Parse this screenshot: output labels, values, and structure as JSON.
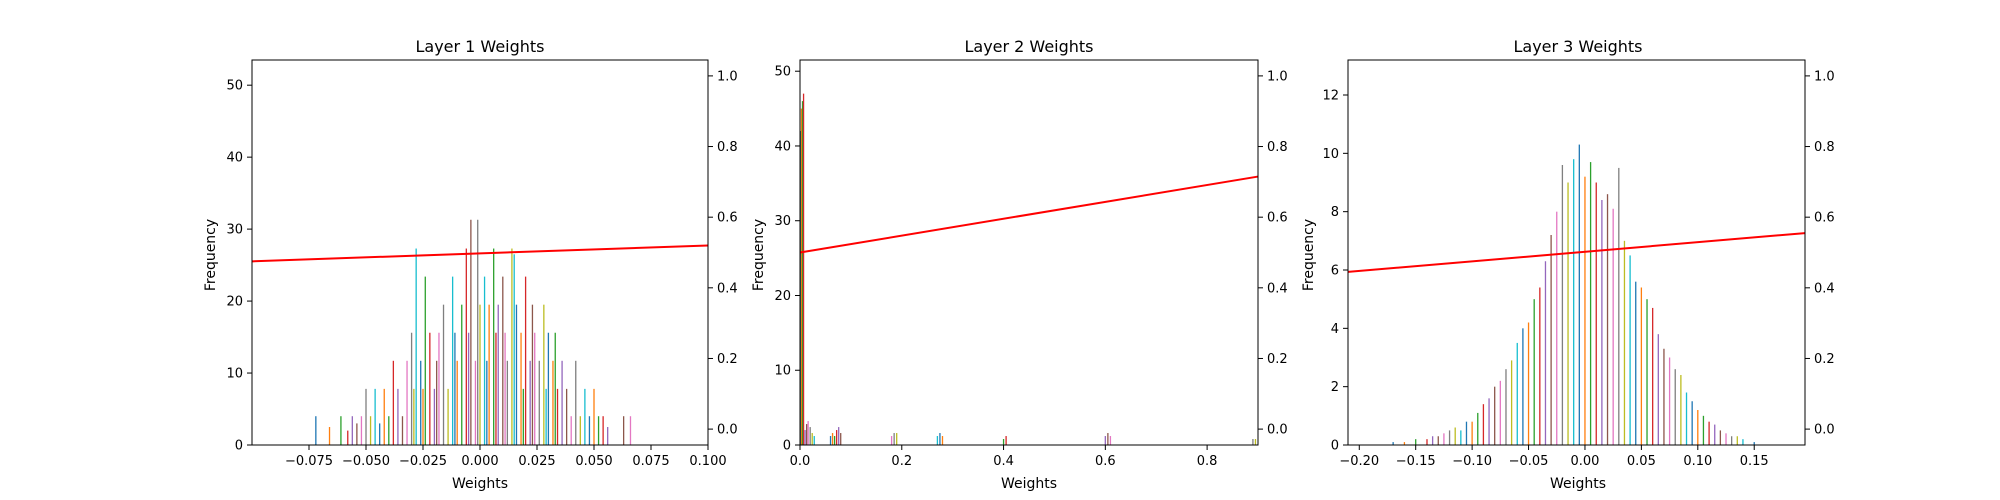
{
  "palette": [
    "#1f77b4",
    "#ff7f0e",
    "#2ca02c",
    "#d62728",
    "#9467bd",
    "#8c564b",
    "#e377c2",
    "#7f7f7f",
    "#bcbd22",
    "#17becf"
  ],
  "line_color": "#ff0000",
  "chart_data": [
    {
      "type": "bar",
      "title": "Layer 1 Weights",
      "xlabel": "Weights",
      "ylabel": "Frequency",
      "xlim": [
        -0.1,
        0.1
      ],
      "ylim": [
        0,
        53.5
      ],
      "xticks": [
        -0.075,
        -0.05,
        -0.025,
        0.0,
        0.025,
        0.05,
        0.075,
        0.1
      ],
      "xtick_labels": [
        "−0.075",
        "−0.050",
        "−0.025",
        "0.000",
        "0.025",
        "0.050",
        "0.075",
        "0.100"
      ],
      "yticks": [
        0,
        10,
        20,
        30,
        40,
        50
      ],
      "ytick_labels": [
        "0",
        "10",
        "20",
        "30",
        "40",
        "50"
      ],
      "y2lim": [
        -0.045,
        1.045
      ],
      "y2ticks": [
        0.0,
        0.2,
        0.4,
        0.6,
        0.8,
        1.0
      ],
      "y2tick_labels": [
        "0.0",
        "0.2",
        "0.4",
        "0.6",
        "0.8",
        "1.0"
      ],
      "line": {
        "x": [
          -0.1,
          0.1
        ],
        "y": [
          0.475,
          0.52
        ]
      },
      "bars": [
        [
          -0.072,
          4
        ],
        [
          -0.066,
          2.5
        ],
        [
          -0.061,
          4
        ],
        [
          -0.058,
          2
        ],
        [
          -0.056,
          4
        ],
        [
          -0.054,
          3
        ],
        [
          -0.052,
          4
        ],
        [
          -0.05,
          7.8
        ],
        [
          -0.048,
          4
        ],
        [
          -0.046,
          7.8
        ],
        [
          -0.044,
          3
        ],
        [
          -0.042,
          7.8
        ],
        [
          -0.04,
          4
        ],
        [
          -0.038,
          11.7
        ],
        [
          -0.036,
          7.8
        ],
        [
          -0.034,
          4
        ],
        [
          -0.032,
          11.7
        ],
        [
          -0.03,
          15.6
        ],
        [
          -0.029,
          7.8
        ],
        [
          -0.028,
          27.3
        ],
        [
          -0.026,
          11.7
        ],
        [
          -0.025,
          7.8
        ],
        [
          -0.024,
          23.4
        ],
        [
          -0.022,
          15.6
        ],
        [
          -0.02,
          7.8
        ],
        [
          -0.019,
          11.7
        ],
        [
          -0.018,
          15.6
        ],
        [
          -0.016,
          19.5
        ],
        [
          -0.014,
          7.8
        ],
        [
          -0.012,
          23.4
        ],
        [
          -0.011,
          15.6
        ],
        [
          -0.01,
          11.7
        ],
        [
          -0.008,
          19.5
        ],
        [
          -0.006,
          27.3
        ],
        [
          -0.005,
          15.6
        ],
        [
          -0.004,
          31.3
        ],
        [
          -0.002,
          11.7
        ],
        [
          -0.001,
          31.3
        ],
        [
          0.0,
          19.5
        ],
        [
          0.002,
          23.4
        ],
        [
          0.003,
          11.7
        ],
        [
          0.004,
          19.5
        ],
        [
          0.006,
          27.3
        ],
        [
          0.007,
          15.6
        ],
        [
          0.008,
          19.5
        ],
        [
          0.01,
          23.4
        ],
        [
          0.011,
          15.6
        ],
        [
          0.012,
          11.7
        ],
        [
          0.014,
          27.3
        ],
        [
          0.015,
          26.5
        ],
        [
          0.016,
          19.5
        ],
        [
          0.018,
          15.6
        ],
        [
          0.019,
          7.8
        ],
        [
          0.02,
          23.4
        ],
        [
          0.022,
          11.7
        ],
        [
          0.023,
          19.5
        ],
        [
          0.024,
          15.6
        ],
        [
          0.026,
          11.7
        ],
        [
          0.028,
          19.5
        ],
        [
          0.029,
          7.8
        ],
        [
          0.03,
          15.6
        ],
        [
          0.032,
          11.7
        ],
        [
          0.033,
          15.6
        ],
        [
          0.034,
          7.8
        ],
        [
          0.036,
          11.7
        ],
        [
          0.038,
          7.8
        ],
        [
          0.04,
          4
        ],
        [
          0.042,
          11.7
        ],
        [
          0.044,
          4
        ],
        [
          0.046,
          7.8
        ],
        [
          0.048,
          4
        ],
        [
          0.05,
          7.8
        ],
        [
          0.052,
          4
        ],
        [
          0.054,
          4
        ],
        [
          0.056,
          2.5
        ],
        [
          0.063,
          4
        ],
        [
          0.066,
          4
        ]
      ]
    },
    {
      "type": "bar",
      "title": "Layer 2 Weights",
      "xlabel": "Weights",
      "ylabel": "Frequency",
      "xlim": [
        0,
        0.9
      ],
      "ylim": [
        0,
        51.5
      ],
      "xticks": [
        0.0,
        0.2,
        0.4,
        0.6,
        0.8
      ],
      "xtick_labels": [
        "0.0",
        "0.2",
        "0.4",
        "0.6",
        "0.8"
      ],
      "yticks": [
        0,
        10,
        20,
        30,
        40,
        50
      ],
      "ytick_labels": [
        "0",
        "10",
        "20",
        "30",
        "40",
        "50"
      ],
      "y2lim": [
        -0.045,
        1.045
      ],
      "y2ticks": [
        0.0,
        0.2,
        0.4,
        0.6,
        0.8,
        1.0
      ],
      "y2tick_labels": [
        "0.0",
        "0.2",
        "0.4",
        "0.6",
        "0.8",
        "1.0"
      ],
      "line": {
        "x": [
          0,
          0.9
        ],
        "y": [
          0.5,
          0.715
        ]
      },
      "bars": [
        [
          0.001,
          42
        ],
        [
          0.003,
          45
        ],
        [
          0.005,
          46
        ],
        [
          0.007,
          47
        ],
        [
          0.01,
          2
        ],
        [
          0.013,
          2.8
        ],
        [
          0.016,
          3.2
        ],
        [
          0.02,
          2.4
        ],
        [
          0.024,
          1.6
        ],
        [
          0.028,
          1.2
        ],
        [
          0.06,
          1.2
        ],
        [
          0.064,
          1.6
        ],
        [
          0.068,
          1.2
        ],
        [
          0.072,
          2
        ],
        [
          0.076,
          2.4
        ],
        [
          0.08,
          1.6
        ],
        [
          0.18,
          1.2
        ],
        [
          0.185,
          1.6
        ],
        [
          0.19,
          1.6
        ],
        [
          0.27,
          1.2
        ],
        [
          0.275,
          1.6
        ],
        [
          0.28,
          1.2
        ],
        [
          0.4,
          0.8
        ],
        [
          0.405,
          1.2
        ],
        [
          0.6,
          1.2
        ],
        [
          0.605,
          1.6
        ],
        [
          0.61,
          1.2
        ],
        [
          0.89,
          0.8
        ],
        [
          0.895,
          0.8
        ]
      ]
    },
    {
      "type": "bar",
      "title": "Layer 3 Weights",
      "xlabel": "Weights",
      "ylabel": "Frequency",
      "xlim": [
        -0.21,
        0.195
      ],
      "ylim": [
        0,
        13.2
      ],
      "xticks": [
        -0.2,
        -0.15,
        -0.1,
        -0.05,
        0.0,
        0.05,
        0.1,
        0.15
      ],
      "xtick_labels": [
        "−0.20",
        "−0.15",
        "−0.10",
        "−0.05",
        "0.00",
        "0.05",
        "0.10",
        "0.15"
      ],
      "yticks": [
        0,
        2,
        4,
        6,
        8,
        10,
        12
      ],
      "ytick_labels": [
        "0",
        "2",
        "4",
        "6",
        "8",
        "10",
        "12"
      ],
      "y2lim": [
        -0.045,
        1.045
      ],
      "y2ticks": [
        0.0,
        0.2,
        0.4,
        0.6,
        0.8,
        1.0
      ],
      "y2tick_labels": [
        "0.0",
        "0.2",
        "0.4",
        "0.6",
        "0.8",
        "1.0"
      ],
      "line": {
        "x": [
          -0.21,
          0.195
        ],
        "y": [
          0.445,
          0.555
        ]
      },
      "bars": [
        [
          -0.17,
          0.1
        ],
        [
          -0.16,
          0.1
        ],
        [
          -0.15,
          0.2
        ],
        [
          -0.14,
          0.2
        ],
        [
          -0.135,
          0.3
        ],
        [
          -0.13,
          0.3
        ],
        [
          -0.125,
          0.4
        ],
        [
          -0.12,
          0.5
        ],
        [
          -0.115,
          0.6
        ],
        [
          -0.11,
          0.5
        ],
        [
          -0.105,
          0.8
        ],
        [
          -0.1,
          0.8
        ],
        [
          -0.095,
          1.1
        ],
        [
          -0.09,
          1.4
        ],
        [
          -0.085,
          1.6
        ],
        [
          -0.08,
          2.0
        ],
        [
          -0.075,
          2.2
        ],
        [
          -0.07,
          2.6
        ],
        [
          -0.065,
          2.9
        ],
        [
          -0.06,
          3.5
        ],
        [
          -0.055,
          4.0
        ],
        [
          -0.05,
          4.2
        ],
        [
          -0.045,
          5.0
        ],
        [
          -0.04,
          5.4
        ],
        [
          -0.035,
          6.3
        ],
        [
          -0.03,
          7.2
        ],
        [
          -0.025,
          8.0
        ],
        [
          -0.02,
          9.6
        ],
        [
          -0.015,
          9.0
        ],
        [
          -0.01,
          9.8
        ],
        [
          -0.005,
          10.3
        ],
        [
          0.0,
          9.2
        ],
        [
          0.005,
          9.7
        ],
        [
          0.01,
          9.0
        ],
        [
          0.015,
          8.4
        ],
        [
          0.02,
          8.6
        ],
        [
          0.025,
          8.1
        ],
        [
          0.03,
          9.5
        ],
        [
          0.035,
          7.0
        ],
        [
          0.04,
          6.5
        ],
        [
          0.045,
          5.6
        ],
        [
          0.05,
          5.4
        ],
        [
          0.055,
          5.0
        ],
        [
          0.06,
          4.7
        ],
        [
          0.065,
          3.8
        ],
        [
          0.07,
          3.3
        ],
        [
          0.075,
          3.0
        ],
        [
          0.08,
          2.6
        ],
        [
          0.085,
          2.4
        ],
        [
          0.09,
          1.8
        ],
        [
          0.095,
          1.5
        ],
        [
          0.1,
          1.2
        ],
        [
          0.105,
          1.0
        ],
        [
          0.11,
          0.8
        ],
        [
          0.115,
          0.7
        ],
        [
          0.12,
          0.5
        ],
        [
          0.125,
          0.4
        ],
        [
          0.13,
          0.3
        ],
        [
          0.135,
          0.3
        ],
        [
          0.14,
          0.2
        ],
        [
          0.15,
          0.1
        ]
      ]
    }
  ]
}
